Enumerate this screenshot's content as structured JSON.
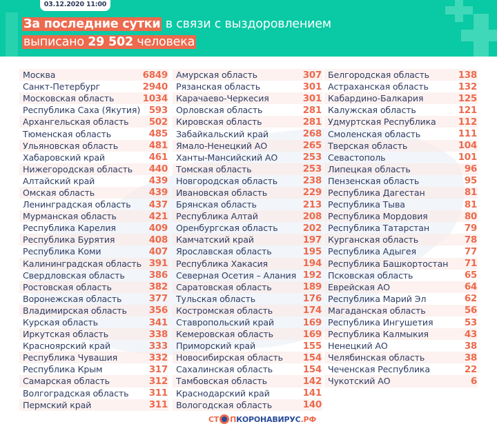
{
  "header": {
    "date": "03.12.2020 11:00",
    "title_highlight": "За последние сутки",
    "title_rest": " в связи с выздоровлением",
    "line2_prefix": "выписано ",
    "line2_number": "29 502",
    "line2_suffix": " человека"
  },
  "colors": {
    "header_bg": "#0ac9a5",
    "accent": "#ec6a4d",
    "text": "#2f3d63"
  },
  "columns": [
    {
      "rows": [
        {
          "name": "Москва",
          "value": "6849"
        },
        {
          "name": "Санкт-Петербург",
          "value": "2940"
        },
        {
          "name": "Московская область",
          "value": "1034"
        },
        {
          "name": "Республика Саха (Якутия)",
          "value": "593"
        },
        {
          "name": "Архангельская область",
          "value": "502"
        },
        {
          "name": "Тюменская область",
          "value": "485"
        },
        {
          "name": "Ульяновская область",
          "value": "481"
        },
        {
          "name": "Хабаровский край",
          "value": "461"
        },
        {
          "name": "Нижегородская область",
          "value": "440"
        },
        {
          "name": "Алтайский край",
          "value": "439"
        },
        {
          "name": "Омская область",
          "value": "439"
        },
        {
          "name": "Ленинградская область",
          "value": "437"
        },
        {
          "name": "Мурманская область",
          "value": "421"
        },
        {
          "name": "Республика Карелия",
          "value": "409"
        },
        {
          "name": "Республика Бурятия",
          "value": "408"
        },
        {
          "name": "Республика Коми",
          "value": "407"
        },
        {
          "name": "Калининградская область",
          "value": "391"
        },
        {
          "name": "Свердловская область",
          "value": "386"
        },
        {
          "name": "Ростовская область",
          "value": "382"
        },
        {
          "name": "Воронежская область",
          "value": "377"
        },
        {
          "name": "Владимирская область",
          "value": "356"
        },
        {
          "name": "Курская область",
          "value": "341"
        },
        {
          "name": "Иркутская область",
          "value": "338"
        },
        {
          "name": "Красноярский край",
          "value": "333"
        },
        {
          "name": "Республика Чувашия",
          "value": "332"
        },
        {
          "name": "Республика Крым",
          "value": "317"
        },
        {
          "name": "Самарская область",
          "value": "312"
        },
        {
          "name": "Волгоградская область",
          "value": "311"
        },
        {
          "name": "Пермский край",
          "value": "311"
        }
      ]
    },
    {
      "rows": [
        {
          "name": "Амурская область",
          "value": "307"
        },
        {
          "name": "Рязанская область",
          "value": "301"
        },
        {
          "name": "Карачаево-Черкесия",
          "value": "301"
        },
        {
          "name": "Орловская область",
          "value": "281"
        },
        {
          "name": "Кировская область",
          "value": "281"
        },
        {
          "name": "Забайкальский край",
          "value": "268"
        },
        {
          "name": "Ямало-Ненецкий АО",
          "value": "265"
        },
        {
          "name": "Ханты-Мансийский АО",
          "value": "253"
        },
        {
          "name": "Томская область",
          "value": "253"
        },
        {
          "name": "Новгородская область",
          "value": "238"
        },
        {
          "name": "Ивановская область",
          "value": "229"
        },
        {
          "name": "Брянская область",
          "value": "213"
        },
        {
          "name": "Республика Алтай",
          "value": "208"
        },
        {
          "name": "Оренбургская область",
          "value": "202"
        },
        {
          "name": "Камчатский край",
          "value": "197"
        },
        {
          "name": "Ярославская область",
          "value": "195"
        },
        {
          "name": "Республика Хакасия",
          "value": "194"
        },
        {
          "name": "Северная Осетия – Алания",
          "value": "192"
        },
        {
          "name": "Саратовская область",
          "value": "189"
        },
        {
          "name": "Тульская область",
          "value": "176"
        },
        {
          "name": "Костромская область",
          "value": "174"
        },
        {
          "name": "Ставропольский край",
          "value": "169"
        },
        {
          "name": "Кемеровская область",
          "value": "169"
        },
        {
          "name": "Приморский край",
          "value": "155"
        },
        {
          "name": "Новосибирская область",
          "value": "154"
        },
        {
          "name": "Сахалинская область",
          "value": "154"
        },
        {
          "name": "Тамбовская область",
          "value": "142"
        },
        {
          "name": "Краснодарский край",
          "value": "141"
        },
        {
          "name": "Вологодская область",
          "value": "140"
        }
      ]
    },
    {
      "rows": [
        {
          "name": "Белгородская область",
          "value": "138"
        },
        {
          "name": "Астраханская область",
          "value": "132"
        },
        {
          "name": "Кабардино-Балкария",
          "value": "125"
        },
        {
          "name": "Калужская область",
          "value": "121"
        },
        {
          "name": "Удмуртская Республика",
          "value": "112"
        },
        {
          "name": "Смоленская область",
          "value": "111"
        },
        {
          "name": "Тверская область",
          "value": "104"
        },
        {
          "name": "Севастополь",
          "value": "101"
        },
        {
          "name": "Липецкая область",
          "value": "96"
        },
        {
          "name": "Пензенская область",
          "value": "95"
        },
        {
          "name": "Республика Дагестан",
          "value": "81"
        },
        {
          "name": "Республика Тыва",
          "value": "81"
        },
        {
          "name": "Республика Мордовия",
          "value": "80"
        },
        {
          "name": "Республика Татарстан",
          "value": "79"
        },
        {
          "name": "Курганская область",
          "value": "78"
        },
        {
          "name": "Республика Адыгея",
          "value": "77"
        },
        {
          "name": "Республика Башкортостан",
          "value": "71"
        },
        {
          "name": "Псковская область",
          "value": "65"
        },
        {
          "name": "Еврейская АО",
          "value": "64"
        },
        {
          "name": "Республика Марий Эл",
          "value": "62"
        },
        {
          "name": "Магаданская область",
          "value": "56"
        },
        {
          "name": "Республика Ингушетия",
          "value": "53"
        },
        {
          "name": "Республика Калмыкия",
          "value": "43"
        },
        {
          "name": "Ненецкий АО",
          "value": "38"
        },
        {
          "name": "Челябинская область",
          "value": "38"
        },
        {
          "name": "Чеченская Республика",
          "value": "22"
        },
        {
          "name": "Чукотский АО",
          "value": "6"
        }
      ]
    }
  ],
  "footer": {
    "logo_part1": "СТ",
    "logo_part2": "П",
    "logo_part3": "КОРОНАВИРУС",
    "logo_part4": ".РФ"
  }
}
